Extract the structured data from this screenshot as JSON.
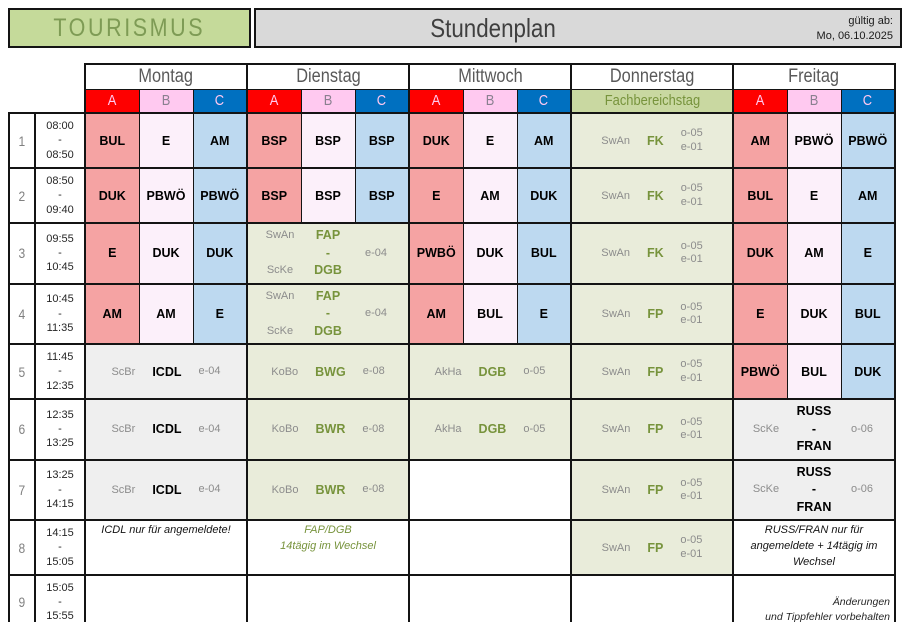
{
  "header": {
    "brand": "TOURISMUS",
    "title": "Stundenplan",
    "valid_label": "gültig ab:",
    "valid_date": "Mo, 06.10.2025"
  },
  "days": [
    "Montag",
    "Dienstag",
    "Mittwoch",
    "Donnerstag",
    "Freitag"
  ],
  "groups": [
    "A",
    "B",
    "C"
  ],
  "fachbereichstag": "Fachbereichstag",
  "colors": {
    "group_a_header": "#FE0000",
    "group_b_header": "#FFC9F0",
    "group_c_header": "#0070C0",
    "cell_a": "#F5A3A3",
    "cell_b": "#FCF0FA",
    "cell_c": "#BDD9F0",
    "green_cell": "#E9ECDA",
    "gray_cell": "#EFEFEF",
    "olive_text": "#77933C",
    "brand_bg": "#C5DA9A",
    "banner_bg": "#C9D8A1",
    "title_bg": "#D9D9D9"
  },
  "rows": [
    {
      "num": "1",
      "start": "08:00",
      "end": "08:50",
      "cells": [
        {
          "type": "abc",
          "values": [
            "BUL",
            "E",
            "AM"
          ]
        },
        {
          "type": "abc",
          "values": [
            "BSP",
            "BSP",
            "BSP"
          ]
        },
        {
          "type": "abc",
          "values": [
            "DUK",
            "E",
            "AM"
          ]
        },
        {
          "type": "lesson",
          "style": "green",
          "teacher": "SwAn",
          "subject": "FK",
          "subject_color": "olive",
          "rooms": [
            "o-05",
            "e-01"
          ]
        },
        {
          "type": "abc",
          "values": [
            "AM",
            "PBWÖ",
            "PBWÖ"
          ]
        }
      ]
    },
    {
      "num": "2",
      "start": "08:50",
      "end": "09:40",
      "cells": [
        {
          "type": "abc",
          "values": [
            "DUK",
            "PBWÖ",
            "PBWÖ"
          ]
        },
        {
          "type": "abc",
          "values": [
            "BSP",
            "BSP",
            "BSP"
          ]
        },
        {
          "type": "abc",
          "values": [
            "E",
            "AM",
            "DUK"
          ]
        },
        {
          "type": "lesson",
          "style": "green",
          "teacher": "SwAn",
          "subject": "FK",
          "subject_color": "olive",
          "rooms": [
            "o-05",
            "e-01"
          ]
        },
        {
          "type": "abc",
          "values": [
            "BUL",
            "E",
            "AM"
          ]
        }
      ]
    },
    {
      "num": "3",
      "start": "09:55",
      "end": "10:45",
      "cells": [
        {
          "type": "abc",
          "values": [
            "E",
            "DUK",
            "DUK"
          ]
        },
        {
          "type": "grid3",
          "style": "green",
          "subject_color": "olive",
          "rows": [
            [
              "SwAn",
              "FAP",
              ""
            ],
            [
              "",
              "-",
              "e-04"
            ],
            [
              "ScKe",
              "DGB",
              ""
            ]
          ]
        },
        {
          "type": "abc",
          "values": [
            "PWBÖ",
            "DUK",
            "BUL"
          ]
        },
        {
          "type": "lesson",
          "style": "green",
          "teacher": "SwAn",
          "subject": "FK",
          "subject_color": "olive",
          "rooms": [
            "o-05",
            "e-01"
          ]
        },
        {
          "type": "abc",
          "values": [
            "DUK",
            "AM",
            "E"
          ]
        }
      ]
    },
    {
      "num": "4",
      "start": "10:45",
      "end": "11:35",
      "cells": [
        {
          "type": "abc",
          "values": [
            "AM",
            "AM",
            "E"
          ]
        },
        {
          "type": "grid3",
          "style": "green",
          "subject_color": "olive",
          "rows": [
            [
              "SwAn",
              "FAP",
              ""
            ],
            [
              "",
              "-",
              "e-04"
            ],
            [
              "ScKe",
              "DGB",
              ""
            ]
          ]
        },
        {
          "type": "abc",
          "values": [
            "AM",
            "BUL",
            "E"
          ]
        },
        {
          "type": "lesson",
          "style": "green",
          "teacher": "SwAn",
          "subject": "FP",
          "subject_color": "olive",
          "rooms": [
            "o-05",
            "e-01"
          ]
        },
        {
          "type": "abc",
          "values": [
            "E",
            "DUK",
            "BUL"
          ]
        }
      ]
    },
    {
      "num": "5",
      "start": "11:45",
      "end": "12:35",
      "cells": [
        {
          "type": "lesson",
          "style": "gray",
          "teacher": "ScBr",
          "subject": "ICDL",
          "subject_color": "black",
          "rooms": [
            "e-04"
          ]
        },
        {
          "type": "lesson",
          "style": "green",
          "teacher": "KoBo",
          "subject": "BWG",
          "subject_color": "olive",
          "rooms": [
            "e-08"
          ]
        },
        {
          "type": "lesson",
          "style": "green",
          "teacher": "AkHa",
          "subject": "DGB",
          "subject_color": "olive",
          "rooms": [
            "o-05"
          ]
        },
        {
          "type": "lesson",
          "style": "green",
          "teacher": "SwAn",
          "subject": "FP",
          "subject_color": "olive",
          "rooms": [
            "o-05",
            "e-01"
          ]
        },
        {
          "type": "abc",
          "values": [
            "PBWÖ",
            "BUL",
            "DUK"
          ]
        }
      ]
    },
    {
      "num": "6",
      "start": "12:35",
      "end": "13:25",
      "cells": [
        {
          "type": "lesson",
          "style": "gray",
          "teacher": "ScBr",
          "subject": "ICDL",
          "subject_color": "black",
          "rooms": [
            "e-04"
          ]
        },
        {
          "type": "lesson",
          "style": "green",
          "teacher": "KoBo",
          "subject": "BWR",
          "subject_color": "olive",
          "rooms": [
            "e-08"
          ]
        },
        {
          "type": "lesson",
          "style": "green",
          "teacher": "AkHa",
          "subject": "DGB",
          "subject_color": "olive",
          "rooms": [
            "o-05"
          ]
        },
        {
          "type": "lesson",
          "style": "green",
          "teacher": "SwAn",
          "subject": "FP",
          "subject_color": "olive",
          "rooms": [
            "o-05",
            "e-01"
          ]
        },
        {
          "type": "grid3",
          "style": "gray",
          "subject_color": "black",
          "rows": [
            [
              "",
              "RUSS",
              ""
            ],
            [
              "ScKe",
              "-",
              "o-06"
            ],
            [
              "",
              "FRAN",
              ""
            ]
          ]
        }
      ]
    },
    {
      "num": "7",
      "start": "13:25",
      "end": "14:15",
      "cells": [
        {
          "type": "lesson",
          "style": "gray",
          "teacher": "ScBr",
          "subject": "ICDL",
          "subject_color": "black",
          "rooms": [
            "e-04"
          ]
        },
        {
          "type": "lesson",
          "style": "green",
          "teacher": "KoBo",
          "subject": "BWR",
          "subject_color": "olive",
          "rooms": [
            "e-08"
          ]
        },
        {
          "type": "empty"
        },
        {
          "type": "lesson",
          "style": "green",
          "teacher": "SwAn",
          "subject": "FP",
          "subject_color": "olive",
          "rooms": [
            "o-05",
            "e-01"
          ]
        },
        {
          "type": "grid3",
          "style": "gray",
          "subject_color": "black",
          "rows": [
            [
              "",
              "RUSS",
              ""
            ],
            [
              "ScKe",
              "-",
              "o-06"
            ],
            [
              "",
              "FRAN",
              ""
            ]
          ]
        }
      ]
    },
    {
      "num": "8",
      "start": "14:15",
      "end": "15:05",
      "cells": [
        {
          "type": "note",
          "color": "black",
          "lines": [
            "ICDL nur für angemeldete!"
          ]
        },
        {
          "type": "note",
          "color": "olive",
          "lines": [
            "FAP/DGB",
            "14tägig im Wechsel"
          ]
        },
        {
          "type": "empty"
        },
        {
          "type": "lesson",
          "style": "green",
          "teacher": "SwAn",
          "subject": "FP",
          "subject_color": "olive",
          "rooms": [
            "o-05",
            "e-01"
          ]
        },
        {
          "type": "note",
          "color": "black",
          "lines": [
            "RUSS/FRAN nur für",
            "angemeldete + 14tägig im",
            "Wechsel"
          ]
        }
      ]
    },
    {
      "num": "9",
      "start": "15:05",
      "end": "15:55",
      "cells": [
        {
          "type": "empty"
        },
        {
          "type": "empty"
        },
        {
          "type": "empty"
        },
        {
          "type": "empty"
        },
        {
          "type": "note",
          "color": "dark",
          "align": "bottom-right",
          "lines": [
            "Änderungen",
            "und Tippfehler vorbehalten"
          ]
        }
      ]
    }
  ]
}
